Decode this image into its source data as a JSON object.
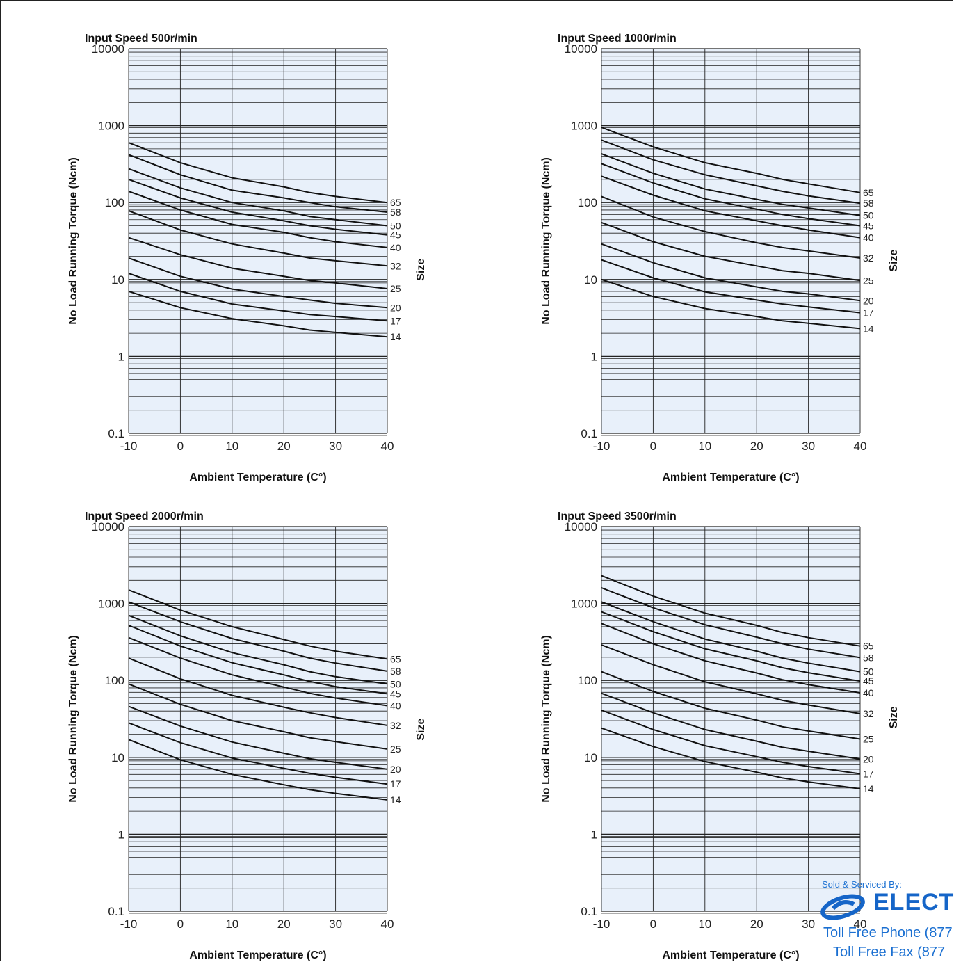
{
  "chart_data": [
    {
      "type": "line",
      "title": "Input Speed 500r/min",
      "xlabel": "Ambient Temperature (C°)",
      "ylabel": "No Load Running Torque (Ncm)",
      "legend_title": "Size",
      "yscale": "log",
      "xlim": [
        -10,
        40
      ],
      "ylim": [
        0.1,
        10000
      ],
      "x_ticks": [
        "-10",
        "0",
        "10",
        "20",
        "30",
        "40"
      ],
      "y_ticks": [
        "0.1",
        "1",
        "10",
        "100",
        "1000",
        "10000"
      ],
      "grid": true,
      "x": [
        -10,
        0,
        10,
        20,
        25,
        30,
        40
      ],
      "series": [
        {
          "name": "65",
          "values": [
            600,
            330,
            210,
            160,
            135,
            120,
            100
          ]
        },
        {
          "name": "58",
          "values": [
            420,
            230,
            145,
            115,
            100,
            88,
            75
          ]
        },
        {
          "name": "50",
          "values": [
            275,
            155,
            100,
            78,
            66,
            60,
            50
          ]
        },
        {
          "name": "45",
          "values": [
            200,
            115,
            75,
            58,
            50,
            45,
            38
          ]
        },
        {
          "name": "40",
          "values": [
            140,
            80,
            52,
            41,
            35,
            31,
            26
          ]
        },
        {
          "name": "32",
          "values": [
            78,
            44,
            29,
            22,
            19,
            17.5,
            15
          ]
        },
        {
          "name": "25",
          "values": [
            35,
            21,
            14,
            11,
            9.7,
            9,
            7.6
          ]
        },
        {
          "name": "20",
          "values": [
            19,
            11,
            7.5,
            6,
            5.4,
            4.9,
            4.3
          ]
        },
        {
          "name": "17",
          "values": [
            12,
            7,
            4.8,
            3.9,
            3.5,
            3.3,
            2.9
          ]
        },
        {
          "name": "14",
          "values": [
            7,
            4.3,
            3.1,
            2.5,
            2.2,
            2.05,
            1.8
          ]
        }
      ]
    },
    {
      "type": "line",
      "title": "Input Speed 1000r/min",
      "xlabel": "Ambient Temperature (C°)",
      "ylabel": "No Load Running Torque (Ncm)",
      "legend_title": "Size",
      "yscale": "log",
      "xlim": [
        -10,
        40
      ],
      "ylim": [
        0.1,
        10000
      ],
      "x_ticks": [
        "-10",
        "0",
        "10",
        "20",
        "30",
        "40"
      ],
      "y_ticks": [
        "0.1",
        "1",
        "10",
        "100",
        "1000",
        "10000"
      ],
      "grid": true,
      "x": [
        -10,
        0,
        10,
        20,
        25,
        30,
        40
      ],
      "series": [
        {
          "name": "65",
          "values": [
            950,
            530,
            330,
            240,
            200,
            175,
            135
          ]
        },
        {
          "name": "58",
          "values": [
            650,
            360,
            230,
            165,
            140,
            122,
            98
          ]
        },
        {
          "name": "50",
          "values": [
            430,
            240,
            150,
            110,
            95,
            85,
            68
          ]
        },
        {
          "name": "45",
          "values": [
            320,
            180,
            112,
            82,
            70,
            62,
            50
          ]
        },
        {
          "name": "40",
          "values": [
            220,
            125,
            78,
            58,
            50,
            44,
            35
          ]
        },
        {
          "name": "32",
          "values": [
            120,
            65,
            42,
            30,
            26,
            23.5,
            19
          ]
        },
        {
          "name": "25",
          "values": [
            55,
            31,
            20,
            15,
            13,
            12,
            9.7
          ]
        },
        {
          "name": "20",
          "values": [
            29,
            16.5,
            10.5,
            8,
            7,
            6.5,
            5.3
          ]
        },
        {
          "name": "17",
          "values": [
            18,
            10.5,
            6.9,
            5.4,
            4.8,
            4.4,
            3.7
          ]
        },
        {
          "name": "14",
          "values": [
            10,
            6,
            4.2,
            3.3,
            2.9,
            2.7,
            2.3
          ]
        }
      ]
    },
    {
      "type": "line",
      "title": "Input Speed 2000r/min",
      "xlabel": "Ambient Temperature (C°)",
      "ylabel": "No Load Running Torque (Ncm)",
      "legend_title": "Size",
      "yscale": "log",
      "xlim": [
        -10,
        40
      ],
      "ylim": [
        0.1,
        10000
      ],
      "x_ticks": [
        "-10",
        "0",
        "10",
        "20",
        "30",
        "40"
      ],
      "y_ticks": [
        "0.1",
        "1",
        "10",
        "100",
        "1000",
        "10000"
      ],
      "grid": true,
      "x": [
        -10,
        0,
        10,
        20,
        25,
        30,
        40
      ],
      "series": [
        {
          "name": "65",
          "values": [
            1500,
            820,
            500,
            340,
            280,
            240,
            190
          ]
        },
        {
          "name": "58",
          "values": [
            1050,
            580,
            350,
            240,
            195,
            168,
            132
          ]
        },
        {
          "name": "50",
          "values": [
            700,
            380,
            230,
            160,
            130,
            112,
            90
          ]
        },
        {
          "name": "45",
          "values": [
            520,
            280,
            170,
            118,
            97,
            83,
            67
          ]
        },
        {
          "name": "40",
          "values": [
            360,
            195,
            118,
            82,
            68,
            59,
            47
          ]
        },
        {
          "name": "32",
          "values": [
            195,
            105,
            64,
            45,
            38,
            33,
            26
          ]
        },
        {
          "name": "25",
          "values": [
            90,
            49,
            30,
            21.5,
            18,
            16,
            12.8
          ]
        },
        {
          "name": "20",
          "values": [
            46,
            25.5,
            15.8,
            11.3,
            9.6,
            8.6,
            7
          ]
        },
        {
          "name": "17",
          "values": [
            28,
            15.5,
            9.8,
            7.2,
            6.2,
            5.5,
            4.5
          ]
        },
        {
          "name": "14",
          "values": [
            17,
            9.3,
            6,
            4.4,
            3.8,
            3.4,
            2.8
          ]
        }
      ]
    },
    {
      "type": "line",
      "title": "Input Speed 3500r/min",
      "xlabel": "Ambient Temperature (C°)",
      "ylabel": "No Load Running Torque (Ncm)",
      "legend_title": "Size",
      "yscale": "log",
      "xlim": [
        -10,
        40
      ],
      "ylim": [
        0.1,
        10000
      ],
      "x_ticks": [
        "-10",
        "0",
        "10",
        "20",
        "30",
        "40"
      ],
      "y_ticks": [
        "0.1",
        "1",
        "10",
        "100",
        "1000",
        "10000"
      ],
      "grid": true,
      "x": [
        -10,
        0,
        10,
        20,
        25,
        30,
        40
      ],
      "series": [
        {
          "name": "65",
          "values": [
            2300,
            1250,
            750,
            520,
            420,
            360,
            280
          ]
        },
        {
          "name": "58",
          "values": [
            1600,
            880,
            530,
            365,
            300,
            255,
            198
          ]
        },
        {
          "name": "50",
          "values": [
            1050,
            580,
            345,
            240,
            195,
            168,
            130
          ]
        },
        {
          "name": "45",
          "values": [
            780,
            430,
            258,
            180,
            146,
            126,
            98
          ]
        },
        {
          "name": "40",
          "values": [
            550,
            300,
            180,
            125,
            102,
            88,
            69
          ]
        },
        {
          "name": "32",
          "values": [
            290,
            160,
            96,
            67,
            55,
            48,
            37
          ]
        },
        {
          "name": "25",
          "values": [
            130,
            72,
            43.5,
            30.5,
            25,
            22,
            17.3
          ]
        },
        {
          "name": "20",
          "values": [
            68,
            38,
            23,
            16.2,
            13.5,
            12,
            9.5
          ]
        },
        {
          "name": "17",
          "values": [
            41,
            23,
            14.2,
            10.2,
            8.6,
            7.6,
            6.1
          ]
        },
        {
          "name": "14",
          "values": [
            24,
            13.8,
            8.8,
            6.4,
            5.4,
            4.8,
            3.9
          ]
        }
      ]
    }
  ],
  "stamp": {
    "sold_by": "Sold & Serviced By:",
    "brand": "ELECTRO",
    "phone": "Toll Free Phone  (877",
    "fax": "Toll Free Fax  (877",
    "brand_color": "#1565c8"
  },
  "colors": {
    "plot_background": "#e8f0fa",
    "line": "#111111",
    "grid": "#222222"
  }
}
